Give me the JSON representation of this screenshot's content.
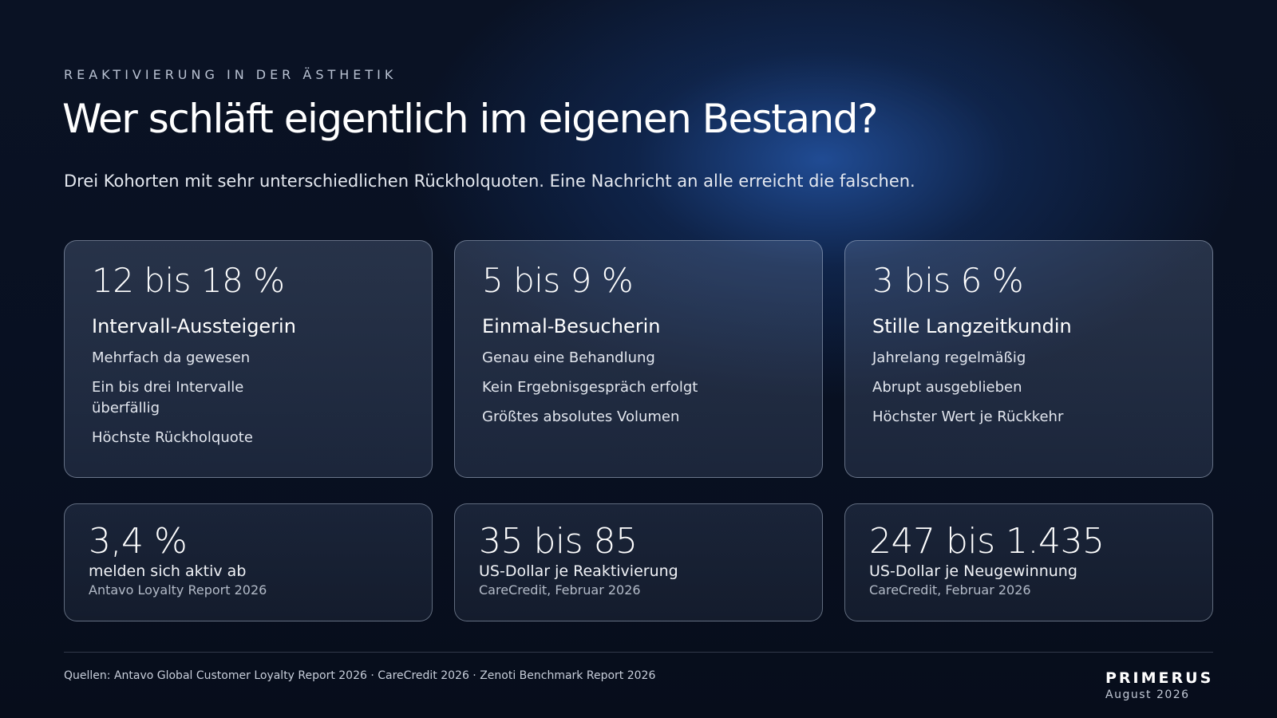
{
  "header": {
    "eyebrow": "REAKTIVIERUNG IN DER ÄSTHETIK",
    "title": "Wer schläft eigentlich im eigenen Bestand?",
    "subtitle": "Drei Kohorten mit sehr unterschiedlichen Rückholquoten. Eine Nachricht an alle erreicht die falschen."
  },
  "cohorts": [
    {
      "rate": "12 bis 18 %",
      "name": "Intervall-Aussteigerin",
      "traits": [
        "Mehrfach da gewesen",
        "Ein bis drei Intervalle überfällig",
        "Höchste Rückholquote"
      ]
    },
    {
      "rate": "5 bis 9 %",
      "name": "Einmal-Besucherin",
      "traits": [
        "Genau eine Behandlung",
        "Kein Ergebnisgespräch erfolgt",
        "Größtes absolutes Volumen"
      ]
    },
    {
      "rate": "3 bis 6 %",
      "name": "Stille Langzeitkundin",
      "traits": [
        "Jahrelang regelmäßig",
        "Abrupt ausgeblieben",
        "Höchster Wert je Rückkehr"
      ]
    }
  ],
  "stats": [
    {
      "value": "3,4 %",
      "label": "melden sich aktiv ab",
      "source": "Antavo Loyalty Report 2026"
    },
    {
      "value": "35 bis 85",
      "label": "US-Dollar je Reaktivierung",
      "source": "CareCredit, Februar 2026"
    },
    {
      "value": "247 bis 1.435",
      "label": "US-Dollar je Neugewinnung",
      "source": "CareCredit, Februar 2026"
    }
  ],
  "footer": {
    "sources": "Quellen: Antavo Global Customer Loyalty Report 2026 · CareCredit 2026 · Zenoti Benchmark Report 2026",
    "brand": "PRIMERUS",
    "date": "August 2026"
  }
}
